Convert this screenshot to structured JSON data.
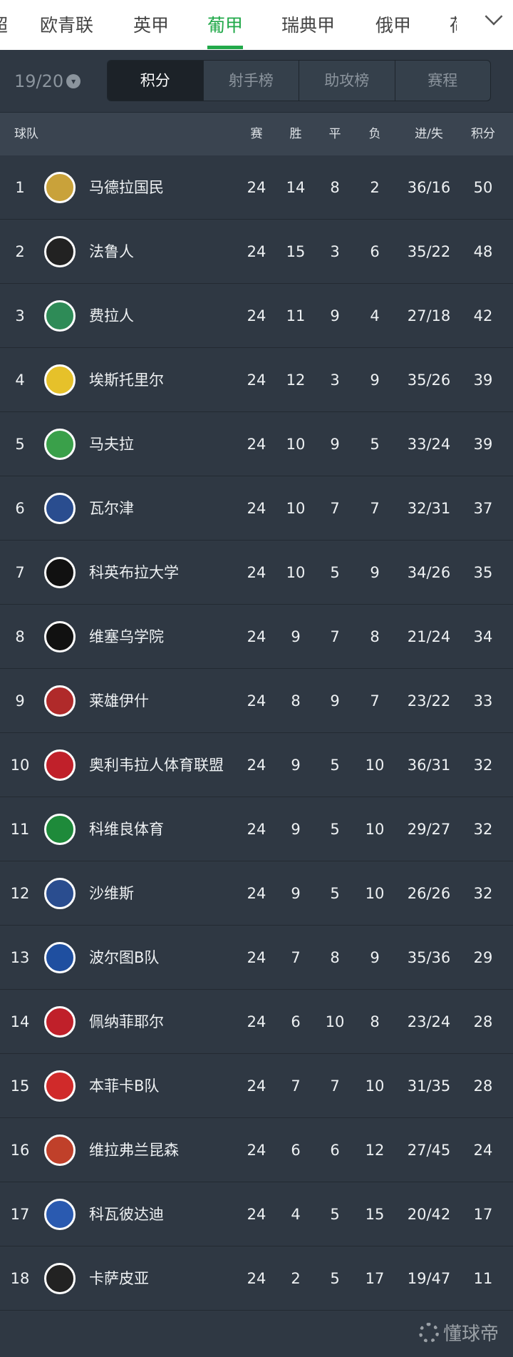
{
  "league_tabs": [
    "超",
    "欧青联",
    "英甲",
    "葡甲",
    "瑞典甲",
    "俄甲",
    "荷"
  ],
  "active_tab": "葡甲",
  "season": "19/20",
  "segments": [
    "积分",
    "射手榜",
    "助攻榜",
    "赛程"
  ],
  "headers": {
    "team": "球队",
    "played": "赛",
    "won": "胜",
    "drawn": "平",
    "lost": "负",
    "goals": "进/失",
    "points": "积分"
  },
  "rows": [
    {
      "rank": "1",
      "name": "马德拉国民",
      "p": "24",
      "w": "14",
      "d": "8",
      "l": "2",
      "g": "36/16",
      "pt": "50",
      "color": "#c9a23a"
    },
    {
      "rank": "2",
      "name": "法鲁人",
      "p": "24",
      "w": "15",
      "d": "3",
      "l": "6",
      "g": "35/22",
      "pt": "48",
      "color": "#222222"
    },
    {
      "rank": "3",
      "name": "费拉人",
      "p": "24",
      "w": "11",
      "d": "9",
      "l": "4",
      "g": "27/18",
      "pt": "42",
      "color": "#2e8b57"
    },
    {
      "rank": "4",
      "name": "埃斯托里尔",
      "p": "24",
      "w": "12",
      "d": "3",
      "l": "9",
      "g": "35/26",
      "pt": "39",
      "color": "#e6c12a"
    },
    {
      "rank": "5",
      "name": "马夫拉",
      "p": "24",
      "w": "10",
      "d": "9",
      "l": "5",
      "g": "33/24",
      "pt": "39",
      "color": "#3aa04a"
    },
    {
      "rank": "6",
      "name": "瓦尔津",
      "p": "24",
      "w": "10",
      "d": "7",
      "l": "7",
      "g": "32/31",
      "pt": "37",
      "color": "#2a4d8f"
    },
    {
      "rank": "7",
      "name": "科英布拉大学",
      "p": "24",
      "w": "10",
      "d": "5",
      "l": "9",
      "g": "34/26",
      "pt": "35",
      "color": "#111111"
    },
    {
      "rank": "8",
      "name": "维塞乌学院",
      "p": "24",
      "w": "9",
      "d": "7",
      "l": "8",
      "g": "21/24",
      "pt": "34",
      "color": "#111111"
    },
    {
      "rank": "9",
      "name": "莱雄伊什",
      "p": "24",
      "w": "8",
      "d": "9",
      "l": "7",
      "g": "23/22",
      "pt": "33",
      "color": "#b02a2a"
    },
    {
      "rank": "10",
      "name": "奥利韦拉人体育联盟",
      "p": "24",
      "w": "9",
      "d": "5",
      "l": "10",
      "g": "36/31",
      "pt": "32",
      "color": "#c0202a"
    },
    {
      "rank": "11",
      "name": "科维良体育",
      "p": "24",
      "w": "9",
      "d": "5",
      "l": "10",
      "g": "29/27",
      "pt": "32",
      "color": "#1e8a3a"
    },
    {
      "rank": "12",
      "name": "沙维斯",
      "p": "24",
      "w": "9",
      "d": "5",
      "l": "10",
      "g": "26/26",
      "pt": "32",
      "color": "#2a4d8f"
    },
    {
      "rank": "13",
      "name": "波尔图B队",
      "p": "24",
      "w": "7",
      "d": "8",
      "l": "9",
      "g": "35/36",
      "pt": "29",
      "color": "#1f4fa0"
    },
    {
      "rank": "14",
      "name": "佩纳菲耶尔",
      "p": "24",
      "w": "6",
      "d": "10",
      "l": "8",
      "g": "23/24",
      "pt": "28",
      "color": "#c0202a"
    },
    {
      "rank": "15",
      "name": "本菲卡B队",
      "p": "24",
      "w": "7",
      "d": "7",
      "l": "10",
      "g": "31/35",
      "pt": "28",
      "color": "#d02a2a"
    },
    {
      "rank": "16",
      "name": "维拉弗兰昆森",
      "p": "24",
      "w": "6",
      "d": "6",
      "l": "12",
      "g": "27/45",
      "pt": "24",
      "color": "#c0402a"
    },
    {
      "rank": "17",
      "name": "科瓦彼达迪",
      "p": "24",
      "w": "4",
      "d": "5",
      "l": "15",
      "g": "20/42",
      "pt": "17",
      "color": "#2a5ab0"
    },
    {
      "rank": "18",
      "name": "卡萨皮亚",
      "p": "24",
      "w": "2",
      "d": "5",
      "l": "17",
      "g": "19/47",
      "pt": "11",
      "color": "#222222"
    }
  ],
  "watermark": "懂球帝"
}
